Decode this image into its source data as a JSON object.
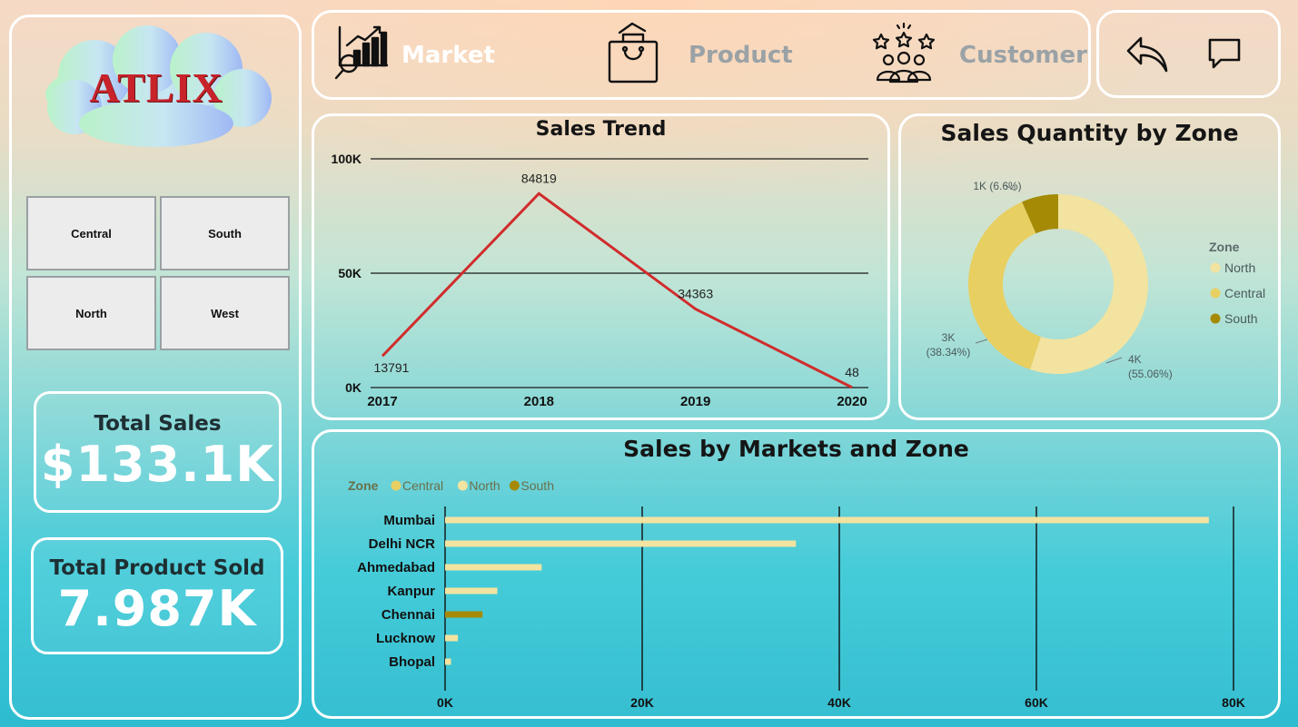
{
  "logo": {
    "text": "ATLIX"
  },
  "zone_filters": [
    "Central",
    "South",
    "North",
    "West"
  ],
  "kpis": {
    "total_sales_label": "Total Sales",
    "total_sales_value": "$133.1K",
    "total_product_label": "Total Product Sold",
    "total_product_value": "7.987K"
  },
  "nav": {
    "items": [
      {
        "label": "Market",
        "icon": "market-chart-icon",
        "active": true
      },
      {
        "label": "Product",
        "icon": "shopping-bag-icon",
        "active": false
      },
      {
        "label": "Customer",
        "icon": "customer-rating-icon",
        "active": false
      }
    ],
    "actions": [
      {
        "icon": "back-arrow-icon"
      },
      {
        "icon": "comment-icon"
      }
    ]
  },
  "colors": {
    "line": "#d12c2c",
    "north": "#f2e3a0",
    "central": "#e8cf62",
    "south": "#a58a05"
  },
  "chart_data": [
    {
      "type": "line",
      "title": "Sales Trend",
      "x": [
        "2017",
        "2018",
        "2019",
        "2020"
      ],
      "series": [
        {
          "values": [
            13791,
            84819,
            34363,
            48
          ]
        }
      ],
      "data_labels": [
        "13791",
        "84819",
        "34363",
        "48"
      ],
      "yticks": [
        "0K",
        "50K",
        "100K"
      ],
      "ylim": [
        0,
        100000
      ],
      "grid": true
    },
    {
      "type": "pie",
      "title": "Sales Quantity by Zone",
      "legend_title": "Zone",
      "legend": [
        "North",
        "Central",
        "South"
      ],
      "legend_position": "right",
      "slices": [
        {
          "name": "North",
          "value": 55.06,
          "label": "4K",
          "pct": "(55.06%)"
        },
        {
          "name": "Central",
          "value": 38.34,
          "label": "3K",
          "pct": "(38.34%)"
        },
        {
          "name": "South",
          "value": 6.6,
          "label": "1K (6.6%)",
          "pct": ""
        }
      ]
    },
    {
      "type": "bar",
      "orientation": "horizontal",
      "title": "Sales by Markets and Zone",
      "legend_title": "Zone",
      "legend": [
        "Central",
        "North",
        "South"
      ],
      "legend_position": "top-left",
      "categories": [
        "Mumbai",
        "Delhi NCR",
        "Ahmedabad",
        "Kanpur",
        "Chennai",
        "Lucknow",
        "Bhopal"
      ],
      "values": [
        77500,
        35600,
        9800,
        5300,
        3800,
        1300,
        600
      ],
      "zones": [
        "North",
        "North",
        "North",
        "North",
        "South",
        "North",
        "North"
      ],
      "xticks": [
        "0K",
        "20K",
        "40K",
        "60K",
        "80K"
      ],
      "xlim": [
        0,
        80000
      ],
      "grid": true
    }
  ]
}
